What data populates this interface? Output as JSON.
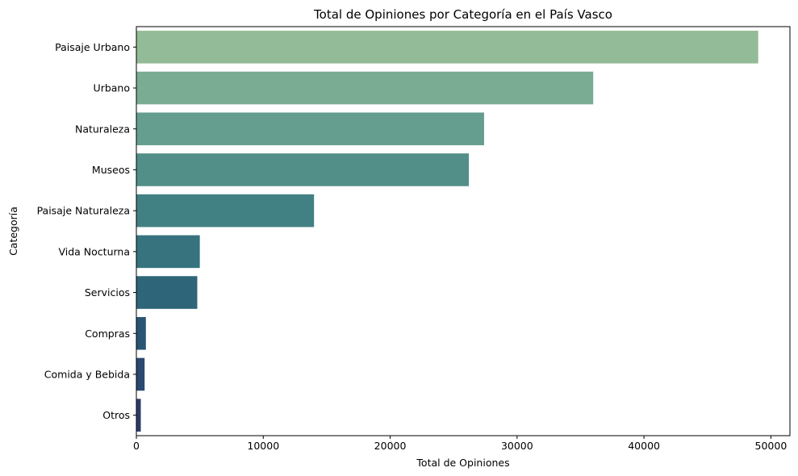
{
  "chart_data": {
    "type": "bar",
    "orientation": "horizontal",
    "title": "Total de Opiniones por Categoría en el País Vasco",
    "xlabel": "Total de Opiniones",
    "ylabel": "Categoría",
    "categories": [
      "Paisaje Urbano",
      "Urbano",
      "Naturaleza",
      "Museos",
      "Paisaje Naturaleza",
      "Vida Nocturna",
      "Servicios",
      "Compras",
      "Comida y Bebida",
      "Otros"
    ],
    "values": [
      49000,
      36000,
      27400,
      26200,
      14000,
      5000,
      4800,
      750,
      650,
      350
    ],
    "colors": [
      "#93bb97",
      "#7aac93",
      "#659e8e",
      "#528f88",
      "#428183",
      "#37737f",
      "#2e6579",
      "#295573",
      "#2a4870",
      "#2c3b68"
    ],
    "xlim": [
      0,
      51500
    ],
    "xticks": [
      0,
      10000,
      20000,
      30000,
      40000,
      50000
    ],
    "xtick_labels": [
      "0",
      "10000",
      "20000",
      "30000",
      "40000",
      "50000"
    ],
    "grid": false,
    "legend": "none"
  }
}
